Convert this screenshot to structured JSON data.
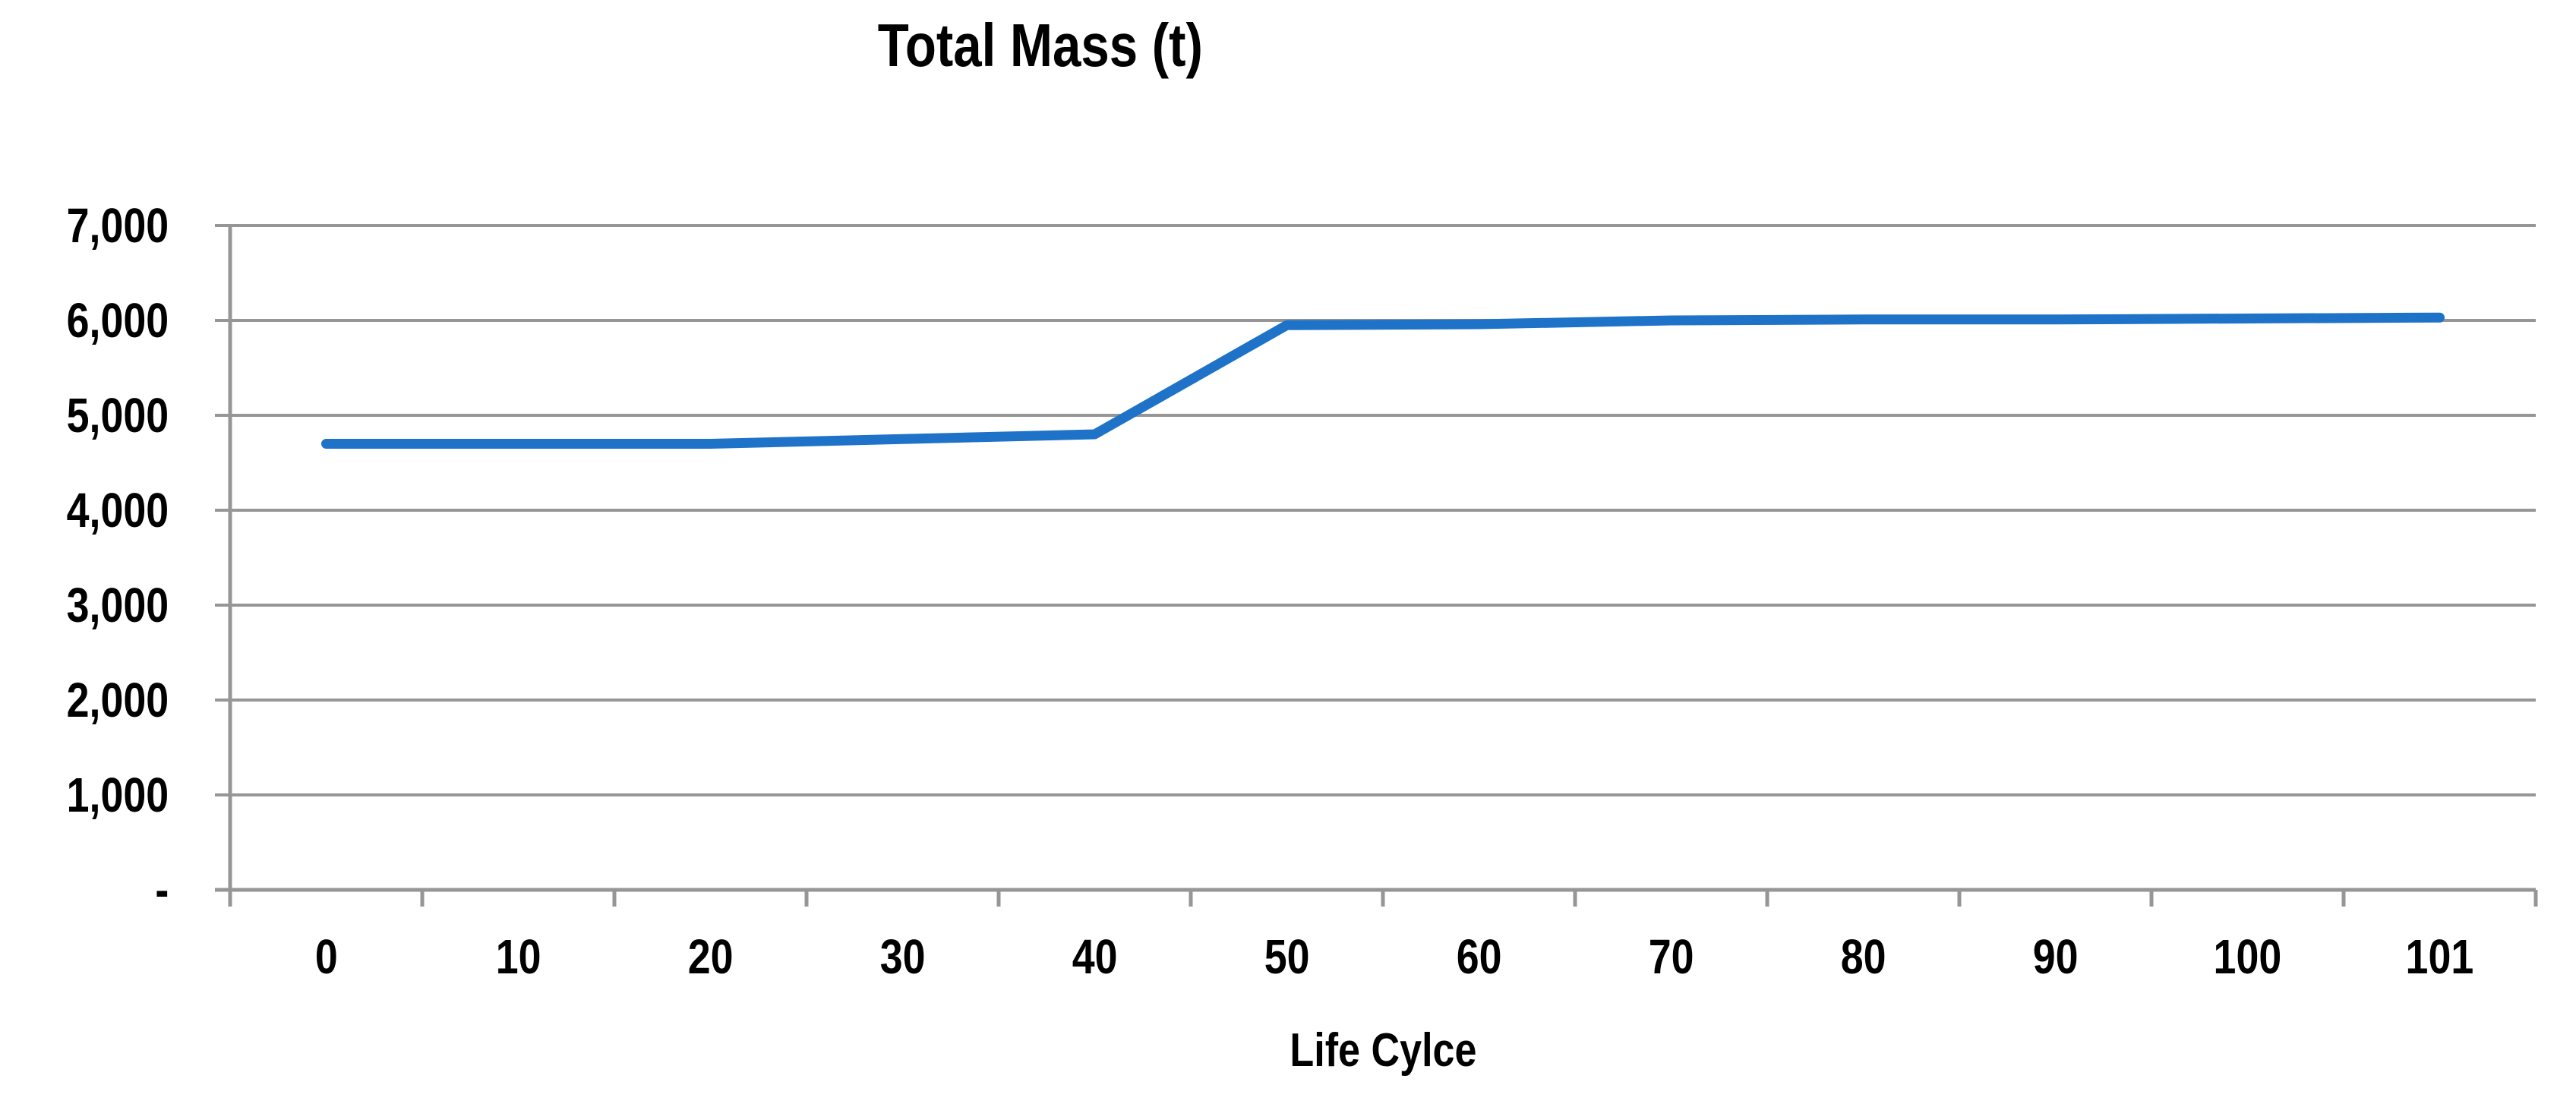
{
  "chart_data": {
    "type": "line",
    "title": "Total Mass (t)",
    "xlabel": "Life Cylce",
    "ylabel": "",
    "categories": [
      "0",
      "10",
      "20",
      "30",
      "40",
      "50",
      "60",
      "70",
      "80",
      "90",
      "100",
      "101"
    ],
    "series": [
      {
        "name": "Total Mass (t)",
        "values": [
          4700,
          4700,
          4700,
          4750,
          4800,
          5950,
          5960,
          6000,
          6010,
          6010,
          6020,
          6030
        ]
      }
    ],
    "y_axis": {
      "min": 0,
      "max": 7000,
      "tick_step": 1000,
      "tick_values": [
        0,
        1000,
        2000,
        3000,
        4000,
        5000,
        6000,
        7000
      ],
      "tick_labels": [
        "-",
        "1,000",
        "2,000",
        "3,000",
        "4,000",
        "5,000",
        "6,000",
        "7,000"
      ]
    },
    "grid": true,
    "legend_position": "none",
    "line_color": "#1E73C8",
    "grid_color": "#969696",
    "text_color": "#000000",
    "background_color": "#FFFFFF"
  }
}
